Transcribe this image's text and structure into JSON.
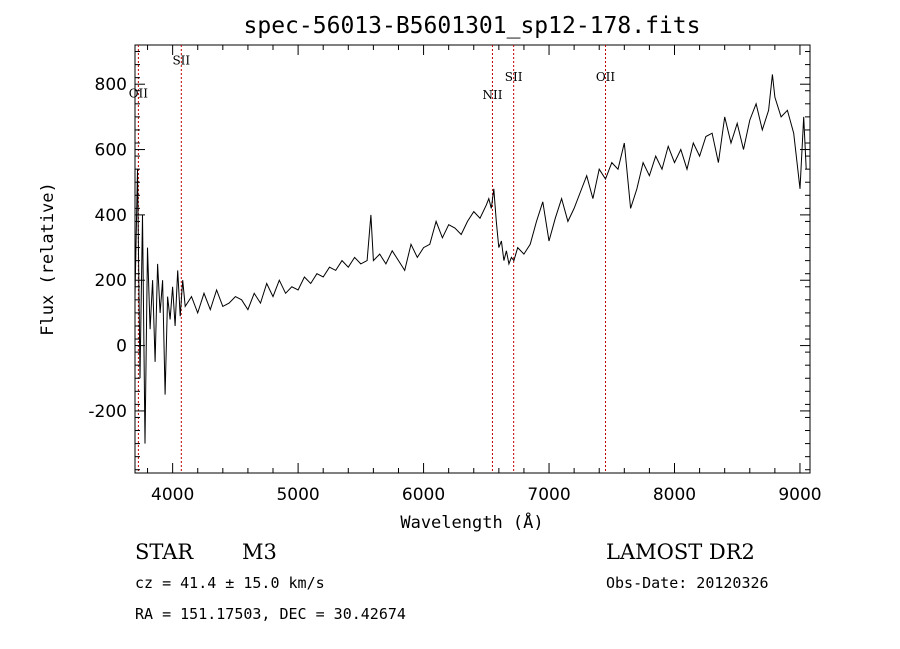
{
  "chart_data": {
    "type": "line",
    "title": "spec-56013-B5601301_sp12-178.fits",
    "xlabel": "Wavelength (Å)",
    "ylabel": "Flux (relative)",
    "xlim": [
      3700,
      9080
    ],
    "ylim": [
      -390,
      920
    ],
    "x_ticks": [
      4000,
      5000,
      6000,
      7000,
      8000,
      9000
    ],
    "y_ticks": [
      -200,
      0,
      200,
      400,
      600,
      800
    ],
    "grid": false,
    "series": [
      {
        "x": [
          3700,
          3720,
          3740,
          3760,
          3780,
          3800,
          3820,
          3840,
          3860,
          3880,
          3900,
          3920,
          3940,
          3960,
          3980,
          4000,
          4020,
          4040,
          4060,
          4080,
          4100,
          4150,
          4200,
          4250,
          4300,
          4350,
          4400,
          4450,
          4500,
          4550,
          4600,
          4650,
          4700,
          4750,
          4800,
          4850,
          4900,
          4950,
          5000,
          5050,
          5100,
          5150,
          5200,
          5250,
          5300,
          5350,
          5400,
          5450,
          5500,
          5550,
          5580,
          5600,
          5650,
          5700,
          5750,
          5800,
          5850,
          5900,
          5950,
          6000,
          6050,
          6100,
          6150,
          6200,
          6250,
          6300,
          6350,
          6400,
          6450,
          6500,
          6520,
          6540,
          6560,
          6580,
          6600,
          6620,
          6640,
          6660,
          6680,
          6700,
          6720,
          6750,
          6800,
          6850,
          6900,
          6950,
          7000,
          7050,
          7100,
          7150,
          7200,
          7250,
          7300,
          7350,
          7400,
          7450,
          7500,
          7550,
          7600,
          7650,
          7700,
          7750,
          7800,
          7850,
          7900,
          7950,
          8000,
          8050,
          8100,
          8150,
          8200,
          8250,
          8300,
          8350,
          8400,
          8450,
          8500,
          8550,
          8600,
          8650,
          8700,
          8750,
          8780,
          8800,
          8850,
          8900,
          8950,
          9000,
          9030,
          9050
        ],
        "y": [
          150,
          540,
          -100,
          400,
          -300,
          300,
          50,
          200,
          -50,
          250,
          100,
          200,
          -150,
          150,
          80,
          180,
          60,
          230,
          90,
          200,
          120,
          150,
          100,
          160,
          110,
          170,
          120,
          130,
          150,
          140,
          110,
          160,
          130,
          190,
          150,
          200,
          160,
          180,
          170,
          210,
          190,
          220,
          210,
          240,
          230,
          260,
          240,
          270,
          250,
          260,
          400,
          260,
          280,
          250,
          290,
          260,
          230,
          310,
          270,
          300,
          310,
          380,
          330,
          370,
          360,
          340,
          380,
          410,
          390,
          430,
          450,
          420,
          480,
          380,
          300,
          320,
          260,
          290,
          250,
          270,
          260,
          300,
          280,
          310,
          380,
          440,
          320,
          390,
          450,
          380,
          420,
          470,
          520,
          450,
          540,
          510,
          560,
          540,
          620,
          420,
          480,
          560,
          520,
          580,
          540,
          610,
          560,
          600,
          540,
          620,
          580,
          640,
          650,
          560,
          700,
          620,
          680,
          600,
          690,
          740,
          660,
          720,
          830,
          760,
          700,
          720,
          650,
          480,
          700,
          540
        ],
        "emission_lines": [
          {
            "name": "OII",
            "x": 3727,
            "label_y": 760
          },
          {
            "name": "SII",
            "x": 4069,
            "label_y": 860
          },
          {
            "name": "NII",
            "x": 6549,
            "label_y": 755
          },
          {
            "name": "SII",
            "x": 6718,
            "label_y": 810
          },
          {
            "name": "OII",
            "x": 7450,
            "label_y": 810
          }
        ]
      }
    ]
  },
  "info": {
    "class_label": "STAR",
    "subclass": "M3",
    "survey": "LAMOST DR2",
    "cz_text": "cz = 41.4 ± 15.0 km/s",
    "obs_date": "Obs-Date: 20120326",
    "coords": "RA = 151.17503, DEC =  30.42674"
  }
}
